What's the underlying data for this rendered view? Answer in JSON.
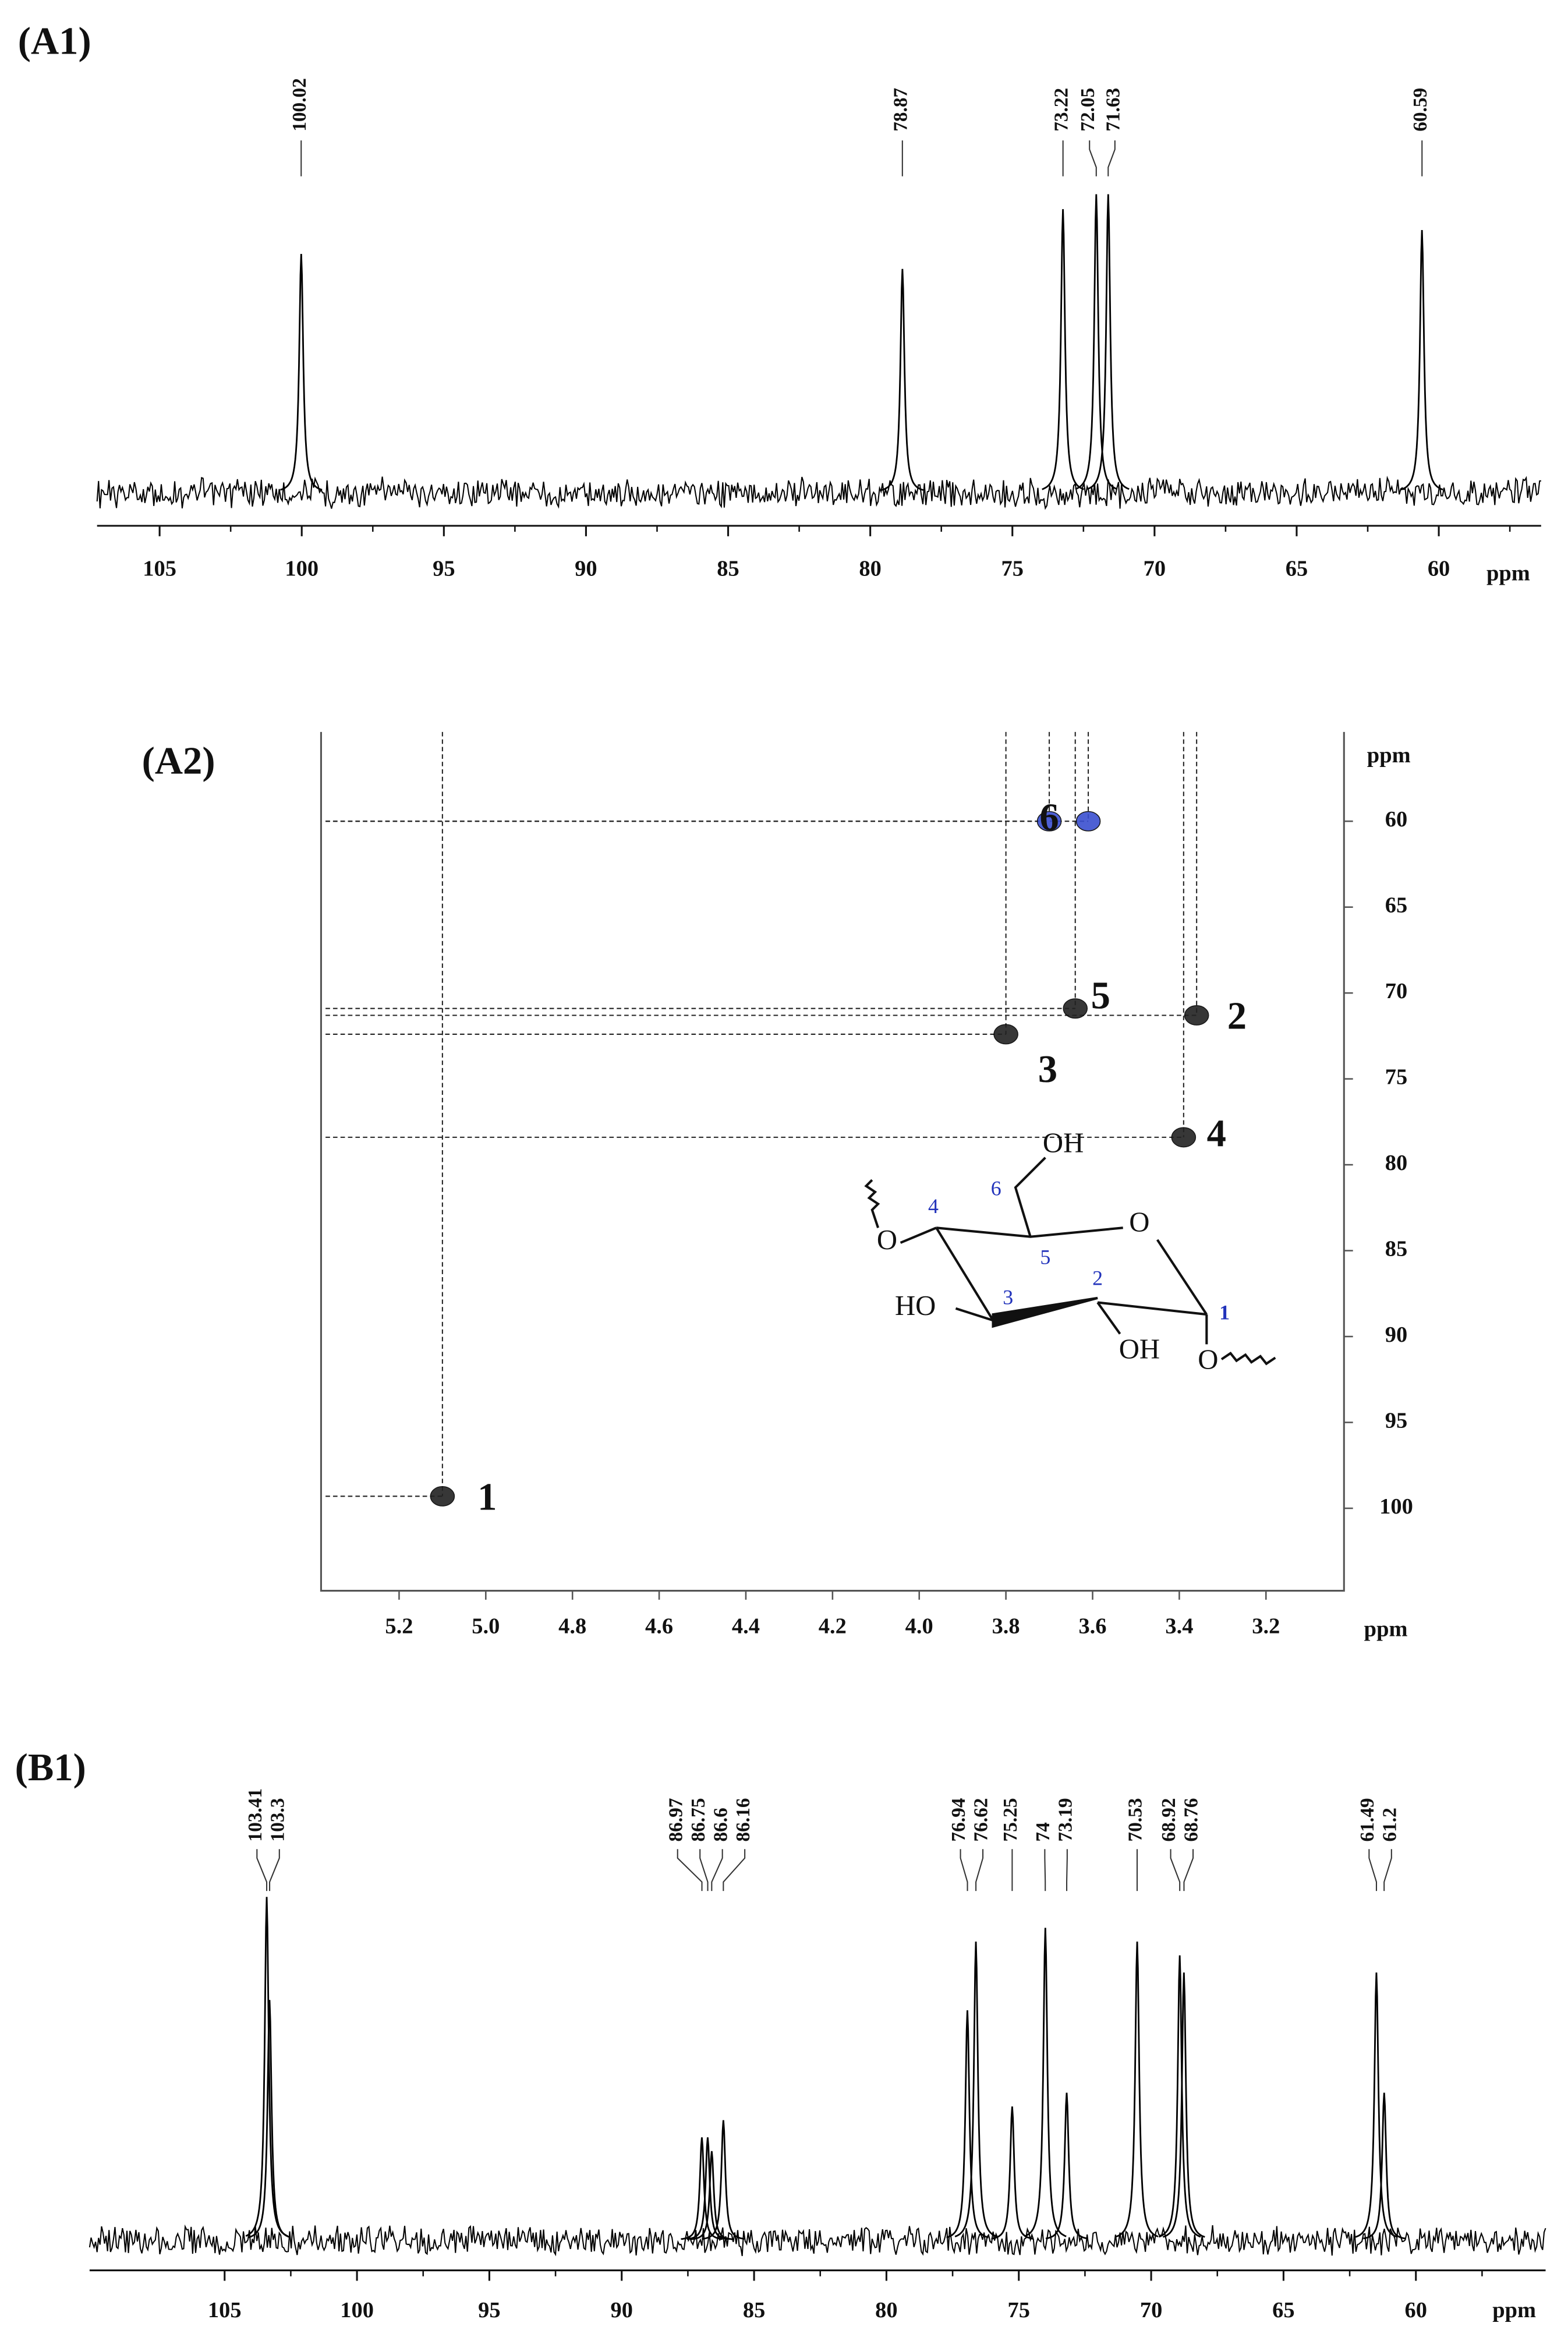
{
  "chart_data": [
    {
      "type": "spectrum",
      "title": "(A1)",
      "xlabel": "ppm",
      "xlim": [
        107.2,
        56.4
      ],
      "xticks": [
        105,
        100,
        95,
        90,
        85,
        80,
        75,
        70,
        65,
        60
      ],
      "ylim": [
        0,
        100
      ],
      "color": "#000000",
      "peaks": [
        100.02,
        78.87,
        73.22,
        72.05,
        71.63,
        60.59
      ],
      "intensities": [
        80,
        75,
        95,
        100,
        100,
        88
      ]
    },
    {
      "type": "scatter",
      "title": "(A2)",
      "xlabel": "ppm",
      "ylabel": "ppm",
      "xlim": [
        5.38,
        3.02
      ],
      "xticks": [
        5.2,
        {
          "value": 5,
          "label": "5.0"
        },
        4.8,
        4.6,
        4.4,
        4.2,
        {
          "value": 4,
          "label": "4.0"
        },
        3.8,
        3.6,
        3.4,
        3.2
      ],
      "ylim": [
        54.8,
        104.8
      ],
      "yticks": [
        60,
        65,
        70,
        75,
        80,
        85,
        90,
        95,
        100
      ],
      "x": [
        5.1,
        3.36,
        3.8,
        3.39,
        3.64,
        3.7,
        3.61
      ],
      "y": [
        99.3,
        71.3,
        72.4,
        78.4,
        70.9,
        60.0,
        60.0
      ],
      "point_labels": [
        "1",
        "2",
        "3",
        "4",
        "5",
        "6",
        null
      ],
      "point_colors": [
        "#222222",
        "#222222",
        "#222222",
        "#222222",
        "#222222",
        "#3a4fd0",
        "#3a4fd0"
      ],
      "structure_labels": [
        "OH",
        "O",
        "HO",
        "OH",
        "O",
        "O",
        "4",
        "6",
        "5",
        "3",
        "2",
        "1"
      ]
    },
    {
      "type": "spectrum",
      "title": "(B1)",
      "xlabel": "ppm",
      "xlim": [
        110.1,
        55.1
      ],
      "xticks": [
        105,
        100,
        95,
        90,
        85,
        80,
        75,
        70,
        65,
        60
      ],
      "ylim": [
        0,
        100
      ],
      "color": "#000000",
      "peaks": [
        103.41,
        103.3,
        86.97,
        86.75,
        86.6,
        86.16,
        76.94,
        76.62,
        75.25,
        74.0,
        73.19,
        70.53,
        68.92,
        68.76,
        61.49,
        61.2
      ],
      "intensities": [
        100,
        70,
        30,
        30,
        26,
        35,
        67,
        87,
        39,
        91,
        43,
        87,
        83,
        78,
        78,
        43
      ]
    }
  ]
}
